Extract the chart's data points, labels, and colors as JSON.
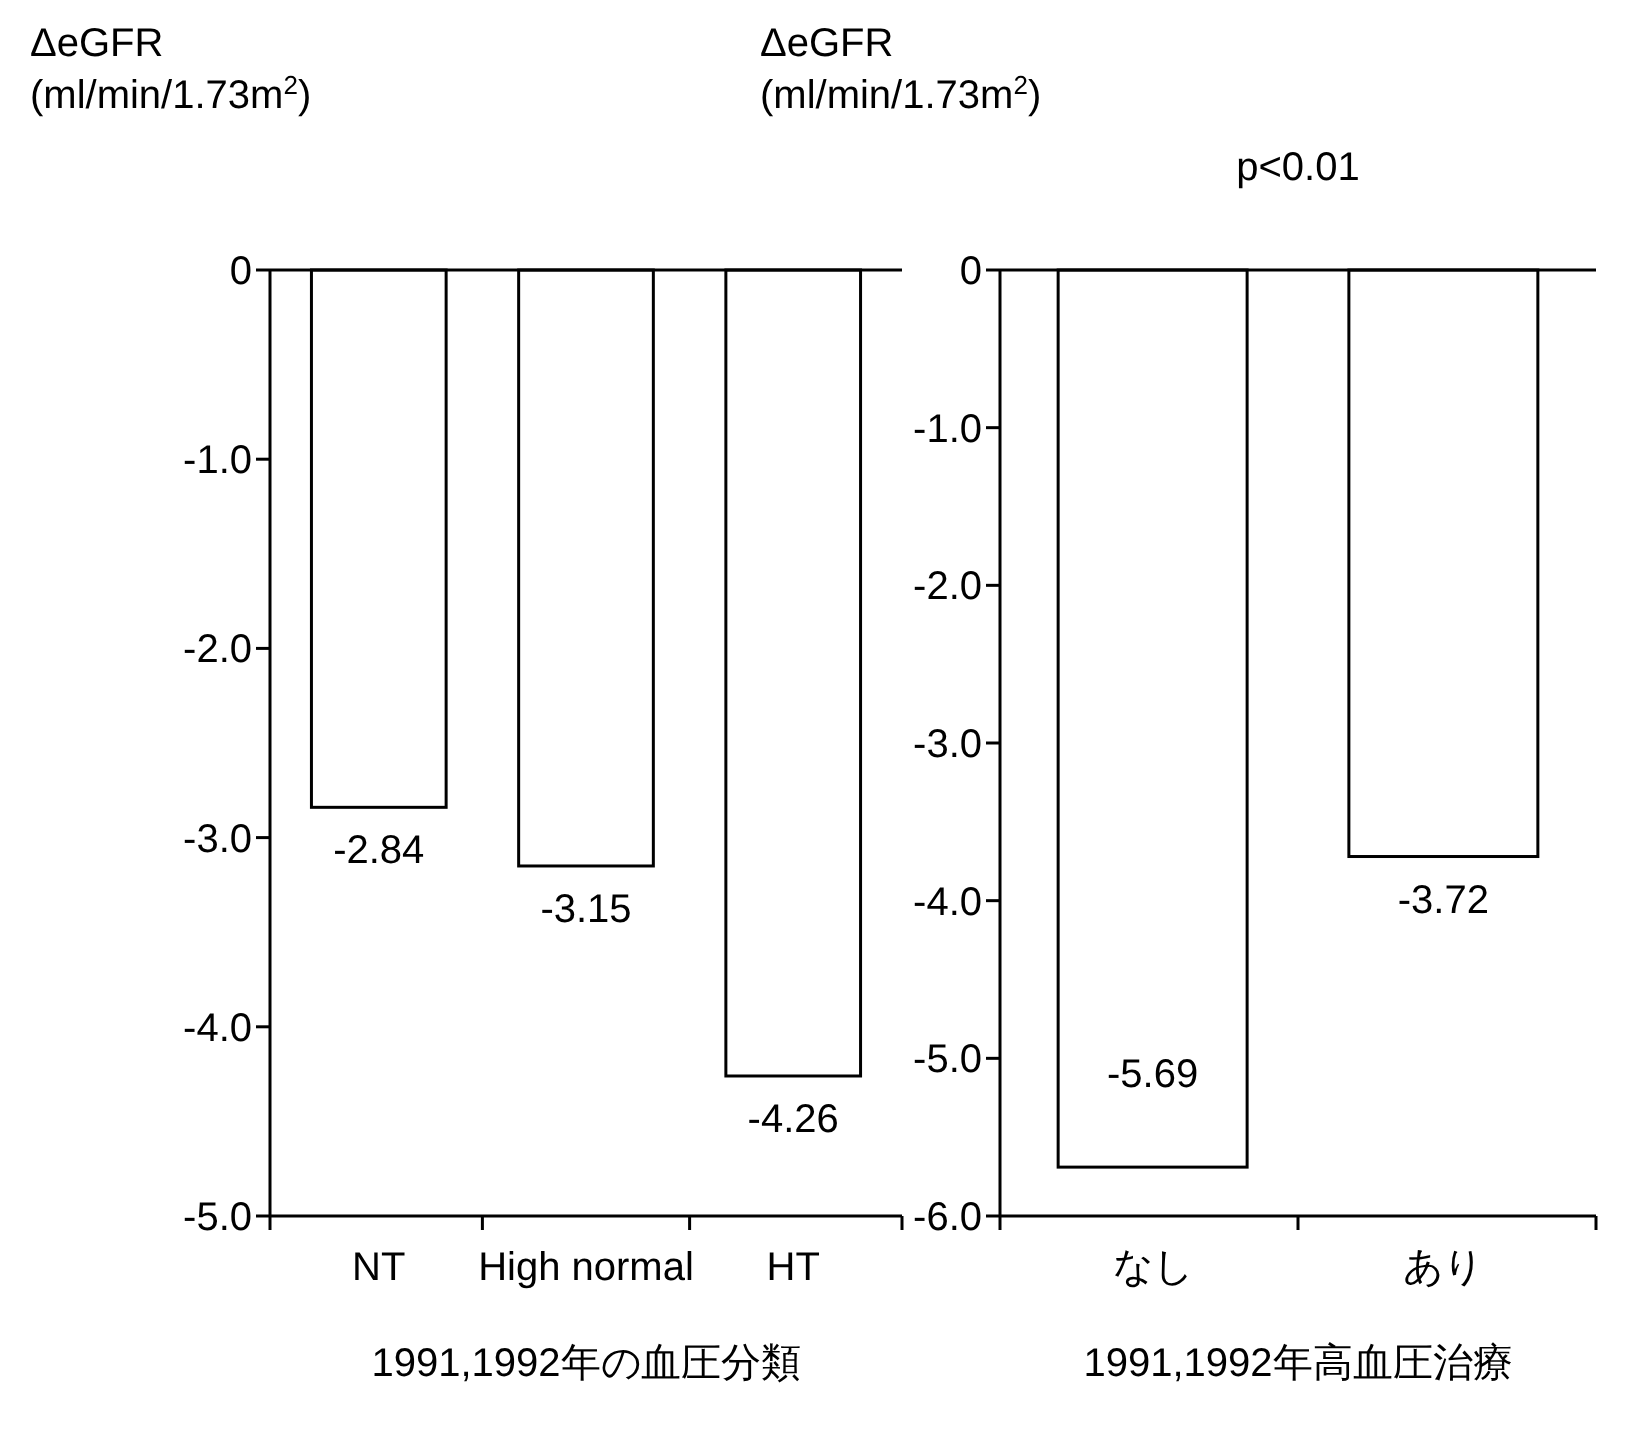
{
  "chart_data": [
    {
      "type": "bar",
      "ylabel": "ΔeGFR\n(ml/min/1.73m$^{2}$)",
      "xlabel": "1991,1992年の血圧分類",
      "categories": [
        "NT",
        "High normal",
        "HT"
      ],
      "values": [
        -2.84,
        -3.15,
        -4.26
      ],
      "color": "#ffffff",
      "ylim": [
        -5,
        0
      ],
      "yticks": [
        0,
        {
          "value": -1,
          "label": "-1.0"
        },
        {
          "value": -2,
          "label": "-2.0"
        },
        {
          "value": -3,
          "label": "-3.0"
        },
        {
          "value": -4,
          "label": "-4.0"
        },
        {
          "value": -5,
          "label": "-5.0"
        }
      ],
      "data_labels": true
    },
    {
      "type": "bar",
      "ylabel": "ΔeGFR\n(ml/min/1.73m$^{2}$)",
      "xlabel": "1991,1992年高血圧治療",
      "categories": [
        "なし",
        "あり"
      ],
      "values": [
        -5.69,
        -3.72
      ],
      "color": "#ffffff",
      "ylim": [
        -6,
        0
      ],
      "yticks": [
        0,
        {
          "value": -1,
          "label": "-1.0"
        },
        {
          "value": -2,
          "label": "-2.0"
        },
        {
          "value": -3,
          "label": "-3.0"
        },
        {
          "value": -4,
          "label": "-4.0"
        },
        {
          "value": -5,
          "label": "-5.0"
        },
        {
          "value": -6,
          "label": "-6.0"
        }
      ],
      "data_labels": true,
      "annotations": [
        "p<0.01"
      ]
    }
  ]
}
